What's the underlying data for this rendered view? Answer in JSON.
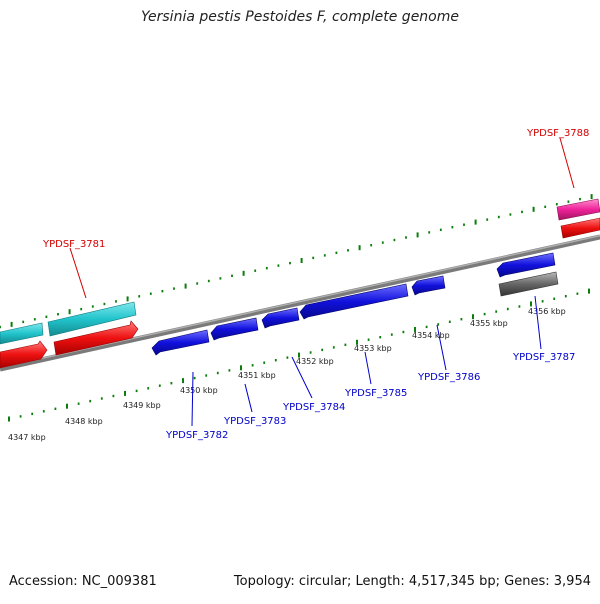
{
  "title": "Yersinia pestis Pestoides F, complete genome",
  "footer": {
    "accession": "Accession: NC_009381",
    "summary": "Topology: circular; Length: 4,517,345 bp; Genes: 3,954"
  },
  "colors": {
    "tick": "#0a7d0a",
    "backbone": "#8a8a8a",
    "forward_label": "#d40000",
    "reverse_label": "#0000cc",
    "cyan_feature": "#22c4cc",
    "red_feature": "#ee1111",
    "magenta_feature": "#ee2299",
    "blue_feature": "#1111dd",
    "grey_feature": "#666666"
  },
  "scale_labels": [
    "4347 kbp",
    "4348 kbp",
    "4349 kbp",
    "4350 kbp",
    "4351 kbp",
    "4352 kbp",
    "4353 kbp",
    "4354 kbp",
    "4355 kbp",
    "4356 kbp"
  ],
  "gene_labels": {
    "forward": [
      "YPDSF_3781",
      "YPDSF_3788"
    ],
    "reverse": [
      "YPDSF_3782",
      "YPDSF_3783",
      "YPDSF_3784",
      "YPDSF_3785",
      "YPDSF_3786",
      "YPDSF_3787"
    ]
  }
}
